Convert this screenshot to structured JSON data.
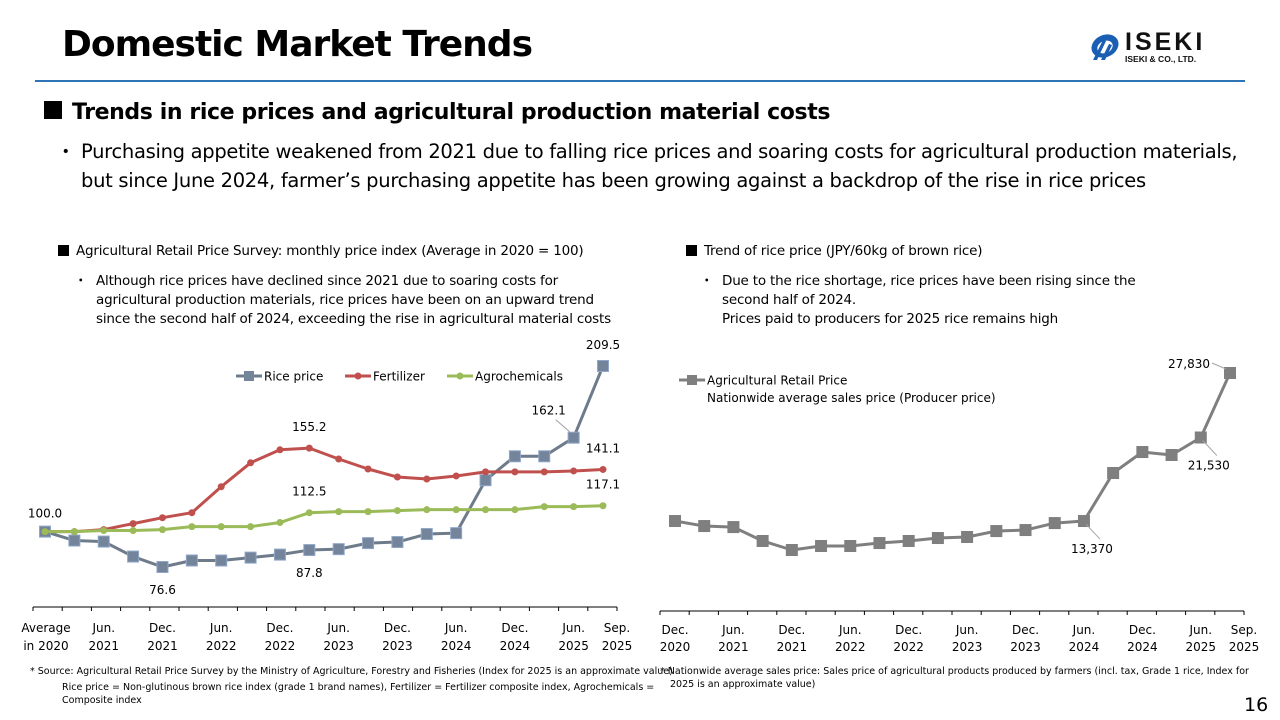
{
  "page": {
    "title": "Domestic Market Trends",
    "page_number": "16",
    "accent_color": "#2e75b6"
  },
  "logo": {
    "brand": "ISEKI",
    "subtitle": "ISEKI & CO., LTD.",
    "icon": "iseki-logo-icon"
  },
  "section": {
    "heading": "Trends in rice prices and agricultural production material costs",
    "bullet": "Purchasing appetite weakened from 2021 due to falling rice prices and soaring costs for agricultural production materials, but since June 2024, farmer’s purchasing appetite has been growing against a backdrop of the rise in rice prices"
  },
  "left_panel": {
    "heading": "Agricultural Retail Price Survey: monthly price index (Average in 2020 = 100)",
    "bullet": "Although rice prices have declined since 2021 due to soaring costs for agricultural production materials, rice prices have been on an upward trend since the second half of 2024, exceeding the rise in agricultural material costs",
    "footnote_1": "* Source: Agricultural Retail Price Survey by the Ministry of Agriculture, Forestry and Fisheries (Index for 2025 is an approximate value)",
    "footnote_2": "Rice price = Non-glutinous brown rice index (grade 1 brand names), Fertilizer = Fertilizer composite index, Agrochemicals = Composite index"
  },
  "right_panel": {
    "heading": "Trend of rice price (JPY/60kg of brown rice)",
    "bullet_line_1": "Due to the rice shortage, rice prices have been rising since the second half of 2024.",
    "bullet_line_2": "Prices paid to producers for 2025 rice remains high",
    "footnote_1": "* Nationwide average sales price: Sales price of agricultural products produced by farmers (incl. tax, Grade 1 rice, Index for",
    "footnote_2": "2025 is an approximate value)"
  },
  "bullet_glyph": "・",
  "chart_data": [
    {
      "type": "line",
      "title": "",
      "xlabel": "",
      "ylabel": "",
      "ylim": [
        60,
        215
      ],
      "grid": false,
      "legend": "top-center",
      "x_tick_labels": [
        [
          "Average",
          "in 2020"
        ],
        [
          "Jun.",
          "2021"
        ],
        [
          "Dec.",
          "2021"
        ],
        [
          "Jun.",
          "2022"
        ],
        [
          "Dec.",
          "2022"
        ],
        [
          "Jun.",
          "2023"
        ],
        [
          "Dec.",
          "2023"
        ],
        [
          "Jun.",
          "2024"
        ],
        [
          "Dec.",
          "2024"
        ],
        [
          "Jun.",
          "2025"
        ],
        [
          "Sep.",
          "2025"
        ]
      ],
      "x_tick_label_indices": [
        0,
        2,
        4,
        6,
        8,
        10,
        12,
        14,
        16,
        18,
        19
      ],
      "n_points": 20,
      "series": [
        {
          "name": "Rice price",
          "color": "#6e7b8b",
          "marker": "square",
          "marker_fill": "#74849a",
          "values": [
            100.0,
            94.1,
            93.4,
            83.5,
            76.6,
            80.9,
            80.9,
            82.8,
            84.8,
            87.8,
            88.4,
            92.4,
            93.1,
            98.4,
            99.0,
            134.0,
            149.8,
            149.8,
            162.1,
            209.5
          ],
          "labels": [
            {
              "index": 0,
              "text": "100.0",
              "pos": "above-left"
            },
            {
              "index": 4,
              "text": "76.6",
              "pos": "below"
            },
            {
              "index": 9,
              "text": "87.8",
              "pos": "below"
            },
            {
              "index": 18,
              "text": "162.1",
              "pos": "above-left"
            },
            {
              "index": 19,
              "text": "209.5",
              "pos": "above"
            }
          ]
        },
        {
          "name": "Fertilizer",
          "color": "#c0504d",
          "marker": "circle",
          "values": [
            100.0,
            100.0,
            101.3,
            105.3,
            109.2,
            112.5,
            129.7,
            145.5,
            154.1,
            155.2,
            148.0,
            141.4,
            136.1,
            134.8,
            136.8,
            139.5,
            139.5,
            139.5,
            140.1,
            141.1
          ],
          "labels": [
            {
              "index": 9,
              "text": "155.2",
              "pos": "above"
            },
            {
              "index": 19,
              "text": "141.1",
              "pos": "above"
            }
          ]
        },
        {
          "name": "Agrochemicals",
          "color": "#9bbb59",
          "marker": "circle",
          "values": [
            100.0,
            100.0,
            100.7,
            100.7,
            101.3,
            103.3,
            103.3,
            103.3,
            106.0,
            112.5,
            113.2,
            113.2,
            113.9,
            114.5,
            114.5,
            114.5,
            114.5,
            116.5,
            116.5,
            117.1
          ],
          "labels": [
            {
              "index": 9,
              "text": "112.5",
              "pos": "above"
            },
            {
              "index": 19,
              "text": "117.1",
              "pos": "above"
            }
          ]
        }
      ]
    },
    {
      "type": "line",
      "title": "",
      "xlabel": "",
      "ylabel": "",
      "ylim": [
        4000,
        29500
      ],
      "grid": false,
      "legend": "top-left",
      "x_tick_labels": [
        [
          "Dec.",
          "2020"
        ],
        [
          "Jun.",
          "2021"
        ],
        [
          "Dec.",
          "2021"
        ],
        [
          "Jun.",
          "2022"
        ],
        [
          "Dec.",
          "2022"
        ],
        [
          "Jun.",
          "2023"
        ],
        [
          "Dec.",
          "2023"
        ],
        [
          "Jun.",
          "2024"
        ],
        [
          "Dec.",
          "2024"
        ],
        [
          "Jun.",
          "2025"
        ],
        [
          "Sep.",
          "2025"
        ]
      ],
      "x_tick_label_indices": [
        0,
        2,
        4,
        6,
        8,
        10,
        12,
        14,
        16,
        18,
        19
      ],
      "n_points": 20,
      "series": [
        {
          "name": "Agricultural Retail Price",
          "name_line_2": "Nationwide average sales price (Producer price)",
          "color": "#7f7f7f",
          "marker": "square",
          "marker_fill": "#7f7f7f",
          "values": [
            13370,
            12880,
            12780,
            11420,
            10540,
            10930,
            10930,
            11220,
            11420,
            11710,
            11810,
            12390,
            12490,
            13170,
            13370,
            18060,
            20110,
            19820,
            21530,
            27830
          ],
          "labels": [
            {
              "index": 14,
              "text": "13,370",
              "pos": "below-right"
            },
            {
              "index": 18,
              "text": "21,530",
              "pos": "below-right"
            },
            {
              "index": 19,
              "text": "27,830",
              "pos": "left"
            }
          ]
        }
      ]
    }
  ]
}
